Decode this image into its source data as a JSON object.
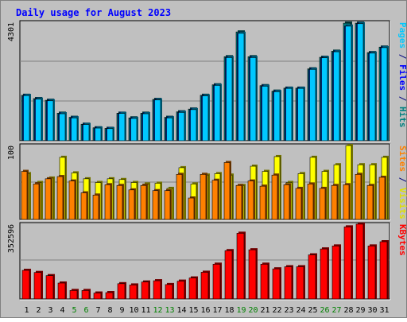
{
  "chart_data": {
    "type": "bar",
    "title": "Daily usage for August 2023",
    "categories": [
      "1",
      "2",
      "3",
      "4",
      "5",
      "6",
      "7",
      "8",
      "9",
      "10",
      "11",
      "12",
      "13",
      "14",
      "15",
      "16",
      "17",
      "18",
      "19",
      "20",
      "21",
      "22",
      "23",
      "24",
      "25",
      "26",
      "27",
      "28",
      "29",
      "30",
      "31"
    ],
    "weekend_days": [
      "5",
      "6",
      "12",
      "13",
      "19",
      "20",
      "26",
      "27"
    ],
    "panels": [
      {
        "name": "hits-files",
        "max_label": "4301",
        "ylim": [
          0,
          4301
        ],
        "right_label_parts": [
          {
            "text": "Pages",
            "color": "#00c8ff"
          },
          {
            "text": " / ",
            "color": "#000080"
          },
          {
            "text": "Files",
            "color": "#0000ff"
          },
          {
            "text": " / ",
            "color": "#000080"
          },
          {
            "text": "Hits",
            "color": "#008080"
          }
        ],
        "series": [
          {
            "name": "Hits",
            "color": "#008080",
            "values": [
              1650,
              1530,
              1470,
              1000,
              850,
              600,
              470,
              450,
              1000,
              830,
              1000,
              1500,
              850,
              1050,
              1150,
              1650,
              2030,
              3050,
              3950,
              3050,
              2000,
              1800,
              1910,
              1910,
              2610,
              3030,
              3250,
              4270,
              4270,
              3200,
              3400
            ]
          },
          {
            "name": "Files",
            "color": "#0000ff",
            "values": [
              1640,
              1510,
              1450,
              980,
              830,
              590,
              460,
              440,
              990,
              810,
              980,
              1480,
              830,
              1030,
              1130,
              1630,
              2010,
              3020,
              3900,
              3020,
              1980,
              1780,
              1900,
              1900,
              2590,
              3010,
              3230,
              4160,
              4250,
              3180,
              3380
            ]
          },
          {
            "name": "Pages",
            "color": "#00c8ff",
            "values": [
              1640,
              1510,
              1450,
              980,
              830,
              590,
              460,
              440,
              990,
              810,
              980,
              1480,
              830,
              1030,
              1130,
              1630,
              2010,
              3020,
              3900,
              3020,
              1980,
              1780,
              1900,
              1900,
              2590,
              3010,
              3230,
              4160,
              4250,
              3180,
              3380
            ]
          }
        ]
      },
      {
        "name": "visits-sites",
        "max_label": "100",
        "ylim": [
          0,
          100
        ],
        "right_label_parts": [
          {
            "text": "Sites",
            "color": "#ff8000"
          },
          {
            "text": " / ",
            "color": "#000080"
          },
          {
            "text": "Visits",
            "color": "#e0e000"
          }
        ],
        "series": [
          {
            "name": "Visits",
            "color": "#ffff00",
            "values": [
              62,
              50,
              56,
              84,
              63,
              55,
              50,
              55,
              54,
              50,
              48,
              49,
              42,
              70,
              48,
              60,
              62,
              60,
              46,
              72,
              65,
              85,
              50,
              62,
              84,
              65,
              74,
              100,
              74,
              74,
              84
            ]
          },
          {
            "name": "Sites",
            "color": "#ff8000",
            "values": [
              65,
              48,
              55,
              58,
              52,
              36,
              33,
              47,
              46,
              40,
              46,
              39,
              39,
              61,
              29,
              61,
              53,
              77,
              46,
              52,
              45,
              60,
              47,
              42,
              48,
              42,
              46,
              47,
              61,
              46,
              57
            ]
          }
        ]
      },
      {
        "name": "kbytes",
        "max_label": "352596",
        "ylim": [
          0,
          352596
        ],
        "right_label_parts": [
          {
            "text": "KBytes",
            "color": "#ff0000"
          }
        ],
        "series": [
          {
            "name": "KBytes",
            "color": "#ff0000",
            "values": [
              135000,
              125000,
              110000,
              75000,
              40000,
              40000,
              28000,
              30000,
              72000,
              66000,
              80000,
              86000,
              68000,
              84000,
              99000,
              126000,
              164000,
              228000,
              310000,
              232000,
              164000,
              142000,
              152000,
              152000,
              208000,
              236000,
              250000,
              340000,
              353000,
              250000,
              270000
            ]
          }
        ]
      }
    ]
  }
}
